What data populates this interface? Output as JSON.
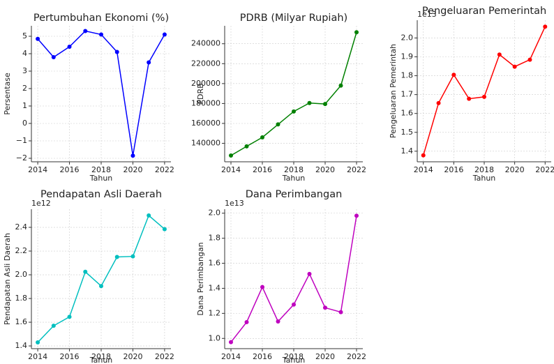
{
  "chart_data": [
    {
      "type": "line",
      "title": "Pertumbuhan Ekonomi (%)",
      "x_label": "Tahun",
      "y_label": "Persentase",
      "x": [
        2014,
        2015,
        2016,
        2017,
        2018,
        2019,
        2020,
        2021,
        2022
      ],
      "series": [
        {
          "color": "#0000ff",
          "values": [
            4.85,
            3.8,
            4.4,
            5.3,
            5.1,
            4.1,
            -1.85,
            3.5,
            5.1
          ]
        }
      ],
      "xlim": [
        2013.6,
        2022.4
      ],
      "xticks": [
        2014,
        2016,
        2018,
        2020,
        2022
      ],
      "ylim": [
        -2.2,
        5.6
      ],
      "yticks": [
        {
          "value": -2,
          "label": "−2"
        },
        {
          "value": -1,
          "label": "−1"
        },
        0,
        1,
        2,
        3,
        4,
        5
      ],
      "grid": true
    },
    {
      "type": "line",
      "title": "PDRB (Milyar Rupiah)",
      "x_label": "Tahun",
      "y_label": "PDRB",
      "x": [
        2014,
        2015,
        2016,
        2017,
        2018,
        2019,
        2020,
        2021,
        2022
      ],
      "series": [
        {
          "color": "#008000",
          "values": [
            127800,
            137000,
            146000,
            159000,
            172000,
            180500,
            179500,
            198000,
            251500
          ]
        }
      ],
      "xlim": [
        2013.6,
        2022.4
      ],
      "xticks": [
        2014,
        2016,
        2018,
        2020,
        2022
      ],
      "ylim": [
        121500,
        258000
      ],
      "yticks": [
        140000,
        160000,
        180000,
        200000,
        220000,
        240000
      ],
      "grid": true
    },
    {
      "type": "line",
      "title": "Pengeluaran Pemerintah",
      "x_label": "Tahun",
      "y_label": "Pengeluaran Pemerintah",
      "offset_label": "1e13",
      "x": [
        2014,
        2015,
        2016,
        2017,
        2018,
        2019,
        2020,
        2021,
        2022
      ],
      "series": [
        {
          "color": "#ff0000",
          "values": [
            1.378,
            1.655,
            1.805,
            1.678,
            1.688,
            1.912,
            1.848,
            1.885,
            2.06
          ]
        }
      ],
      "xlim": [
        2013.6,
        2022.4
      ],
      "xticks": [
        2014,
        2016,
        2018,
        2020,
        2022
      ],
      "ylim": [
        1.344,
        2.094
      ],
      "yticks": [
        1.4,
        1.5,
        1.6,
        1.7,
        1.8,
        1.9,
        {
          "value": 2,
          "label": "2.0"
        }
      ],
      "grid": true
    },
    {
      "type": "line",
      "title": "Pendapatan Asli Daerah",
      "x_label": "Tahun",
      "y_label": "Pendapatan Asli Daerah",
      "offset_label": "1e12",
      "x": [
        2014,
        2015,
        2016,
        2017,
        2018,
        2019,
        2020,
        2021,
        2022
      ],
      "series": [
        {
          "color": "#00bfbf",
          "values": [
            1.43,
            1.57,
            1.645,
            2.025,
            1.905,
            2.15,
            2.155,
            2.5,
            2.385
          ]
        }
      ],
      "xlim": [
        2013.6,
        2022.4
      ],
      "xticks": [
        2014,
        2016,
        2018,
        2020,
        2022
      ],
      "ylim": [
        1.377,
        2.553
      ],
      "yticks": [
        1.4,
        1.6,
        1.8,
        {
          "value": 2,
          "label": "2.0"
        },
        2.2,
        2.4
      ],
      "grid": true
    },
    {
      "type": "line",
      "title": "Dana Perimbangan",
      "x_label": "Tahun",
      "y_label": "Dana Perimbangan",
      "offset_label": "1e13",
      "x": [
        2014,
        2015,
        2016,
        2017,
        2018,
        2019,
        2020,
        2021,
        2022
      ],
      "series": [
        {
          "color": "#bf00bf",
          "values": [
            0.97,
            1.13,
            1.41,
            1.135,
            1.27,
            1.515,
            1.245,
            1.21,
            1.98
          ]
        }
      ],
      "xlim": [
        2013.6,
        2022.4
      ],
      "xticks": [
        2014,
        2016,
        2018,
        2020,
        2022
      ],
      "ylim": [
        0.918,
        2.032
      ],
      "yticks": [
        {
          "value": 1,
          "label": "1.0"
        },
        1.2,
        1.4,
        1.6,
        1.8,
        {
          "value": 2,
          "label": "2.0"
        }
      ],
      "grid": true
    }
  ]
}
